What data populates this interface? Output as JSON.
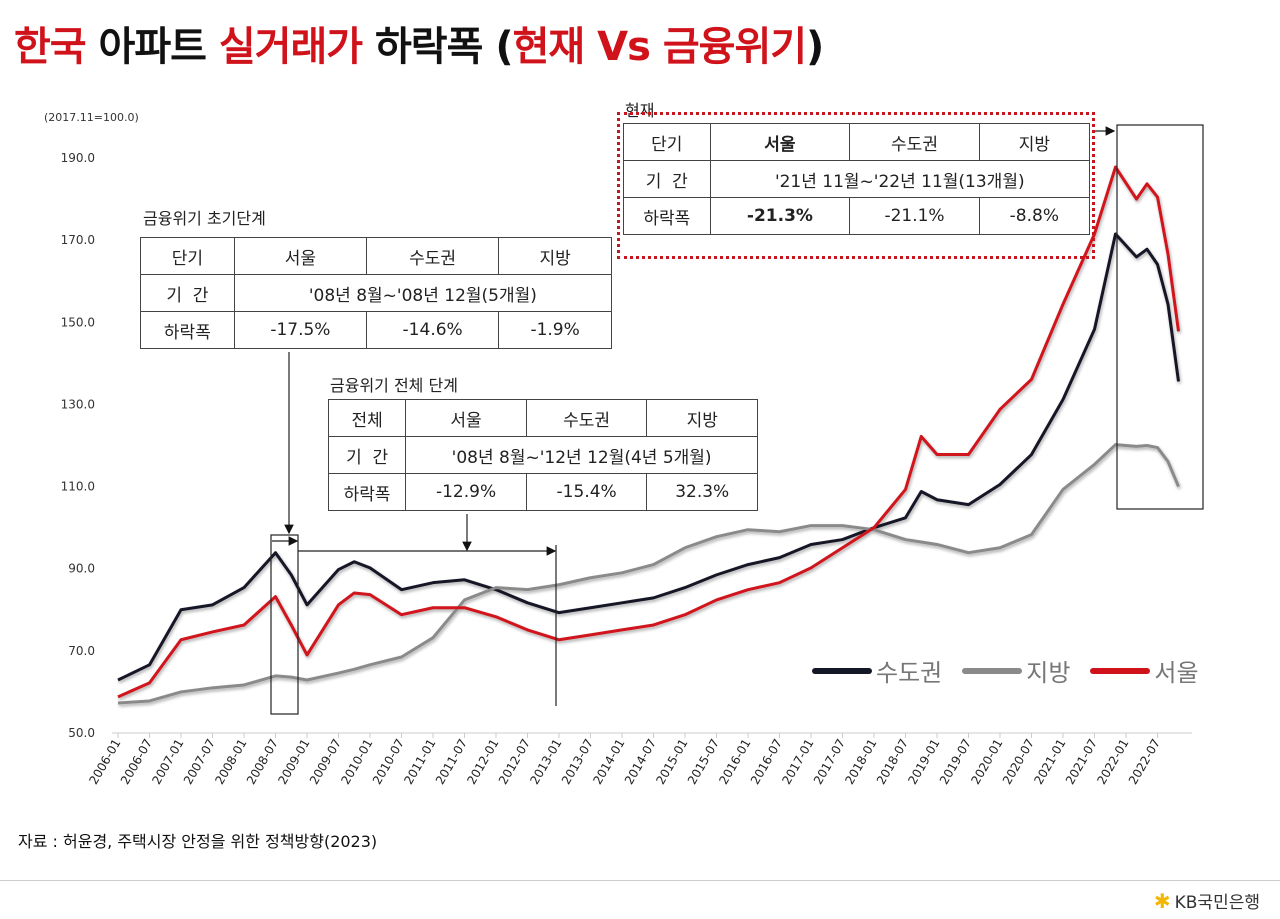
{
  "title": {
    "segments": [
      {
        "text": "한국",
        "color": "red"
      },
      {
        "text": " 아파트 ",
        "color": "black"
      },
      {
        "text": "실거래가",
        "color": "red"
      },
      {
        "text": " 하락폭 (",
        "color": "black"
      },
      {
        "text": "현재 Vs 금융위기",
        "color": "red"
      },
      {
        "text": ")",
        "color": "black"
      }
    ]
  },
  "annotations": {
    "early": {
      "title": "금융위기 초기단계",
      "header": [
        "단기",
        "서울",
        "수도권",
        "지방"
      ],
      "period_label": "기  간",
      "period": "'08년 8월~'08년 12월(5개월)",
      "drop_label": "하락폭",
      "drops": [
        "-17.5%",
        "-14.6%",
        "-1.9%"
      ]
    },
    "full": {
      "title": "금융위기 전체 단계",
      "header": [
        "전체",
        "서울",
        "수도권",
        "지방"
      ],
      "period_label": "기  간",
      "period": "'08년 8월~'12년 12월(4년 5개월)",
      "drop_label": "하락폭",
      "drops": [
        "-12.9%",
        "-15.4%",
        "32.3%"
      ]
    },
    "current": {
      "title": "현재",
      "header": [
        "단기",
        "서울",
        "수도권",
        "지방"
      ],
      "period_label": "기  간",
      "period": "'21년 11월~'22년 11월(13개월)",
      "drop_label": "하락폭",
      "drops": [
        "-21.3%",
        "-21.1%",
        "-8.8%"
      ]
    }
  },
  "source": "자료 : 허윤경, 주택시장 안정을 위한 정책방향(2023)",
  "logo": {
    "text": "KB국민은행",
    "mark": "kb-star-icon"
  },
  "colors": {
    "red": "#d0121b",
    "navy": "#141826",
    "gray": "#8a8a8a",
    "accent_red": "#c8161e"
  },
  "chart_data": {
    "type": "line",
    "title": "",
    "ylabel": "(2017.11=100.0)",
    "xlabel": "",
    "ylim": [
      50,
      190
    ],
    "yticks": [
      "50.0",
      "70.0",
      "90.0",
      "110.0",
      "130.0",
      "150.0",
      "170.0",
      "190.0"
    ],
    "xticks": [
      "2006-01",
      "2006-07",
      "2007-01",
      "2007-07",
      "2008-01",
      "2008-07",
      "2009-01",
      "2009-07",
      "2010-01",
      "2010-07",
      "2011-01",
      "2011-07",
      "2012-01",
      "2012-07",
      "2013-01",
      "2013-07",
      "2014-01",
      "2014-07",
      "2015-01",
      "2015-07",
      "2016-01",
      "2016-07",
      "2017-01",
      "2017-07",
      "2018-01",
      "2018-07",
      "2019-01",
      "2019-07",
      "2020-01",
      "2020-07",
      "2021-01",
      "2021-07",
      "2022-01",
      "2022-07"
    ],
    "grid": false,
    "legend": "bottom-right",
    "x": [
      "2006-01",
      "2006-07",
      "2007-01",
      "2007-07",
      "2008-01",
      "2008-07",
      "2008-10",
      "2009-01",
      "2009-07",
      "2009-10",
      "2010-01",
      "2010-07",
      "2011-01",
      "2011-07",
      "2012-01",
      "2012-07",
      "2013-01",
      "2013-07",
      "2014-01",
      "2014-07",
      "2015-01",
      "2015-07",
      "2016-01",
      "2016-07",
      "2017-01",
      "2017-07",
      "2018-01",
      "2018-07",
      "2018-10",
      "2019-01",
      "2019-07",
      "2020-01",
      "2020-07",
      "2021-01",
      "2021-07",
      "2021-11",
      "2022-03",
      "2022-05",
      "2022-07",
      "2022-09",
      "2022-11"
    ],
    "series": [
      {
        "name": "수도권",
        "color": "#141826",
        "values": [
          62.9,
          66.6,
          80.0,
          81.2,
          85.4,
          93.9,
          88.5,
          81.2,
          89.8,
          91.7,
          90.2,
          84.9,
          86.6,
          87.3,
          84.9,
          81.7,
          79.3,
          80.5,
          81.7,
          82.9,
          85.4,
          88.5,
          91.0,
          92.7,
          95.9,
          97.1,
          100.0,
          102.4,
          108.8,
          106.8,
          105.6,
          110.5,
          117.8,
          131.2,
          148.3,
          171.5,
          165.9,
          167.8,
          164.1,
          154.4,
          135.6
        ]
      },
      {
        "name": "지방",
        "color": "#8a8a8a",
        "values": [
          57.3,
          57.8,
          60.0,
          61.0,
          61.7,
          63.9,
          63.6,
          62.9,
          64.6,
          65.5,
          66.6,
          68.5,
          73.2,
          82.4,
          85.4,
          84.9,
          86.1,
          87.8,
          89.0,
          91.0,
          95.1,
          97.8,
          99.5,
          99.0,
          100.5,
          100.5,
          99.5,
          97.1,
          96.5,
          95.9,
          93.9,
          95.1,
          98.3,
          109.3,
          115.4,
          120.2,
          119.8,
          120.0,
          119.5,
          116.1,
          110.0
        ]
      },
      {
        "name": "서울",
        "color": "#d0121b",
        "values": [
          58.8,
          62.2,
          72.7,
          74.6,
          76.3,
          83.2,
          76.3,
          69.0,
          81.2,
          84.1,
          83.7,
          78.8,
          80.5,
          80.5,
          78.3,
          75.1,
          72.7,
          73.9,
          75.1,
          76.3,
          78.8,
          82.4,
          84.9,
          86.6,
          90.2,
          95.1,
          100.0,
          109.3,
          122.2,
          117.8,
          117.8,
          128.8,
          136.1,
          154.4,
          171.5,
          187.8,
          180.0,
          183.7,
          180.5,
          166.6,
          147.8
        ]
      }
    ]
  }
}
